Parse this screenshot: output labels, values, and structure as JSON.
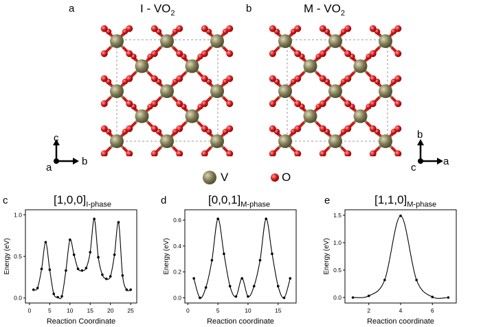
{
  "figure": {
    "panels": {
      "a": {
        "letter": "a",
        "title_main": "I - VO",
        "title_sub": "2"
      },
      "b": {
        "letter": "b",
        "title_main": "M - VO",
        "title_sub": "2"
      }
    },
    "axes_a": {
      "up": "c",
      "right": "b",
      "origin": "a"
    },
    "axes_b": {
      "up": "b",
      "right": "a",
      "origin": "c"
    },
    "legend": {
      "v_label": "V",
      "o_label": "O"
    },
    "colors": {
      "vanadium": "#7f7a52",
      "oxygen": "#d41616",
      "bond_v": "#8a845c",
      "cell": "#9a9a9a"
    }
  },
  "chart_data": [
    {
      "panel": "c",
      "type": "line",
      "title_main": "[1,0,0]",
      "title_sub": "I-phase",
      "xlabel": "Reaction Coordinate",
      "ylabel": "Energy (eV)",
      "xlim": [
        -1,
        26.5
      ],
      "ylim": [
        -0.06,
        1.06
      ],
      "xticks": [
        0,
        5,
        10,
        15,
        20,
        25
      ],
      "yticks": [
        0.0,
        0.5,
        1.0
      ],
      "ytick_labels": [
        "0.0",
        "0.5",
        "1.0"
      ],
      "x": [
        1,
        2,
        3,
        4,
        5,
        6,
        7,
        8,
        9,
        10,
        11,
        12,
        13,
        14,
        15,
        16,
        17,
        18,
        19,
        20,
        21,
        22,
        23,
        24,
        25
      ],
      "y": [
        0.1,
        0.12,
        0.35,
        0.67,
        0.34,
        0.05,
        0.01,
        0.02,
        0.33,
        0.7,
        0.52,
        0.35,
        0.33,
        0.36,
        0.55,
        0.95,
        0.49,
        0.28,
        0.23,
        0.26,
        0.52,
        0.91,
        0.27,
        0.1,
        0.1
      ]
    },
    {
      "panel": "d",
      "type": "line",
      "title_main": "[0,0,1]",
      "title_sub": "M-phase",
      "xlabel": "Reaction coordinate",
      "ylabel": "Energy (eV)",
      "xlim": [
        -0.5,
        18
      ],
      "ylim": [
        -0.04,
        0.68
      ],
      "xticks": [
        0,
        5,
        10,
        15
      ],
      "yticks": [
        0.0,
        0.2,
        0.4,
        0.6
      ],
      "ytick_labels": [
        "0.0",
        "0.2",
        "0.4",
        "0.6"
      ],
      "x": [
        1,
        2,
        3,
        4,
        5,
        6,
        7,
        8,
        9,
        10,
        11,
        12,
        13,
        14,
        15,
        16,
        17
      ],
      "y": [
        0.15,
        0.0,
        0.08,
        0.29,
        0.61,
        0.34,
        0.09,
        0.01,
        0.15,
        0.01,
        0.09,
        0.29,
        0.61,
        0.34,
        0.09,
        0.0,
        0.15
      ]
    },
    {
      "panel": "e",
      "type": "line",
      "title_main": "[1,1,0]",
      "title_sub": "M-phase",
      "xlabel": "Reaction coordinate",
      "ylabel": "Energy (eV)",
      "xlim": [
        0.5,
        7.5
      ],
      "ylim": [
        -0.1,
        1.6
      ],
      "xticks": [
        2,
        4,
        6
      ],
      "yticks": [
        0.0,
        0.5,
        1.0,
        1.5
      ],
      "ytick_labels": [
        "0.0",
        "0.5",
        "1.0",
        "1.5"
      ],
      "x": [
        1,
        2,
        3,
        4,
        5,
        6,
        7
      ],
      "y": [
        0.0,
        0.03,
        0.32,
        1.49,
        0.32,
        0.01,
        0.0
      ]
    }
  ]
}
